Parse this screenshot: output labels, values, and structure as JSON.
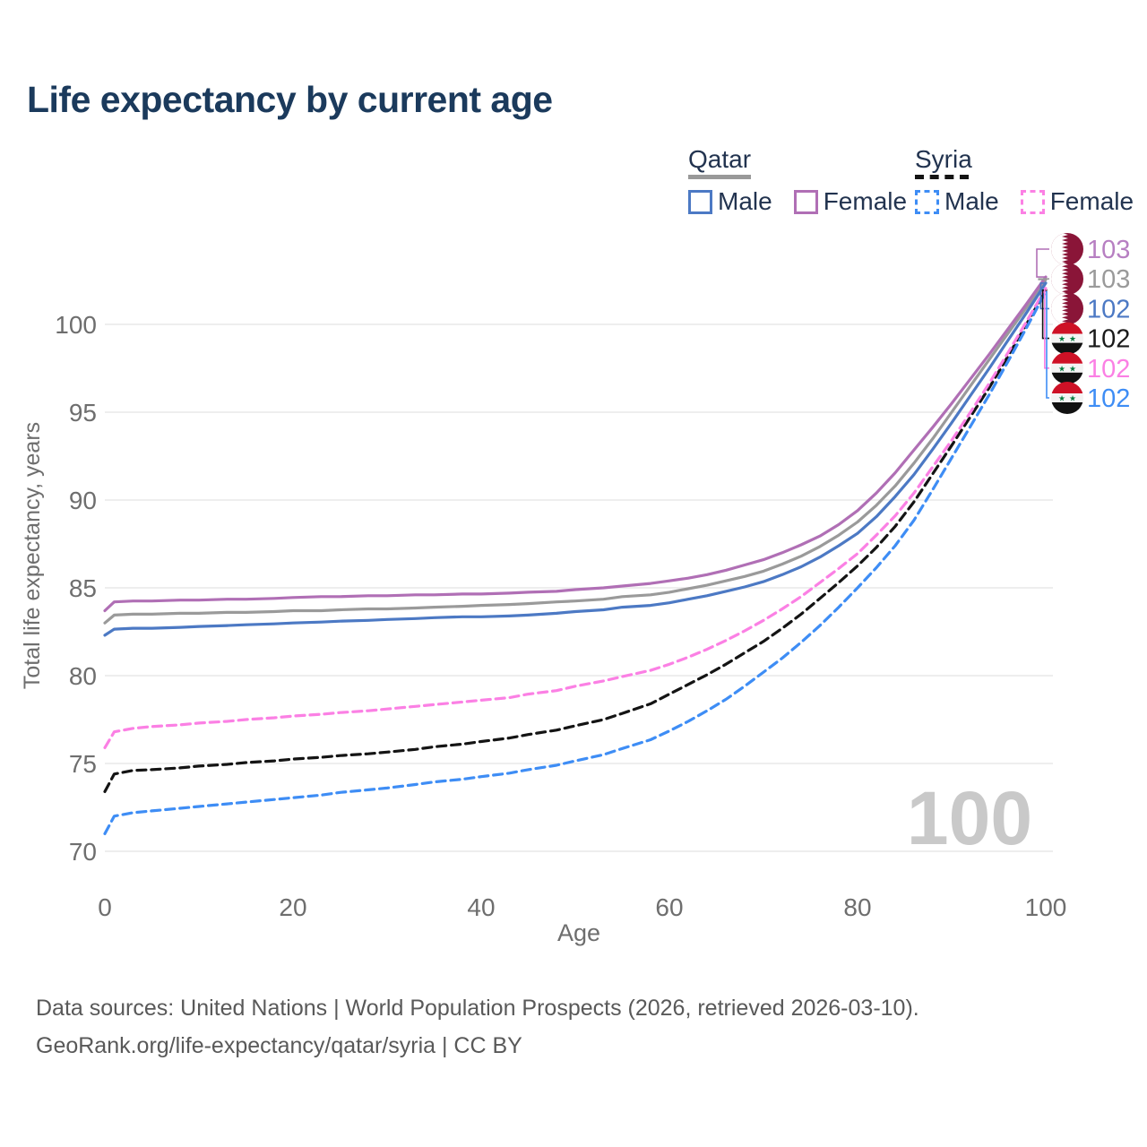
{
  "title": "Life expectancy by current age",
  "legend": {
    "groups": [
      {
        "country": "Qatar",
        "line_style": "solid",
        "average_line_color": "#999999",
        "items": [
          {
            "label": "Male",
            "color": "#4c79c4"
          },
          {
            "label": "Female",
            "color": "#b06fb5"
          }
        ]
      },
      {
        "country": "Syria",
        "line_style": "dashed",
        "average_line_color": "#141414",
        "items": [
          {
            "label": "Male",
            "color": "#3e8df5"
          },
          {
            "label": "Female",
            "color": "#fb80e4"
          }
        ]
      }
    ]
  },
  "watermark": "100",
  "footer": {
    "line1": "Data sources: United Nations | World Population Prospects (2026, retrieved 2026-03-10).",
    "line2": "GeoRank.org/life-expectancy/qatar/syria | CC BY"
  },
  "chart_data": {
    "type": "line",
    "title": "Life expectancy by current age",
    "xlabel": "Age",
    "ylabel": "Total life expectancy, years",
    "xlim": [
      0,
      100
    ],
    "ylim": [
      70,
      103
    ],
    "xticks": [
      0,
      20,
      40,
      60,
      80,
      100
    ],
    "yticks": [
      70,
      75,
      80,
      85,
      90,
      95,
      100
    ],
    "grid": "horizontal",
    "grid_color": "#e8e8e8",
    "tick_color": "#6e6e6e",
    "x": [
      0,
      1,
      3,
      5,
      8,
      10,
      13,
      15,
      18,
      20,
      23,
      25,
      28,
      30,
      33,
      35,
      38,
      40,
      43,
      45,
      48,
      50,
      53,
      55,
      58,
      60,
      62,
      64,
      66,
      68,
      70,
      72,
      74,
      76,
      78,
      80,
      82,
      84,
      86,
      88,
      90,
      92,
      94,
      96,
      98,
      100
    ],
    "series": [
      {
        "name": "Qatar (both sexes)",
        "country": "Qatar",
        "sex": "Both",
        "color": "#9a9a9a",
        "dash": "solid",
        "end_value": 103,
        "values": [
          83.0,
          83.45,
          83.5,
          83.5,
          83.55,
          83.55,
          83.6,
          83.6,
          83.65,
          83.7,
          83.7,
          83.75,
          83.8,
          83.8,
          83.85,
          83.9,
          83.95,
          84.0,
          84.05,
          84.1,
          84.2,
          84.25,
          84.35,
          84.5,
          84.6,
          84.75,
          84.95,
          85.15,
          85.4,
          85.65,
          85.95,
          86.35,
          86.8,
          87.35,
          88.0,
          88.75,
          89.7,
          90.8,
          92.1,
          93.5,
          95.0,
          96.5,
          98.0,
          99.5,
          101.0,
          102.55
        ]
      },
      {
        "name": "Qatar Female",
        "country": "Qatar",
        "sex": "Female",
        "color": "#b06fb5",
        "dash": "solid",
        "end_value": 103,
        "values": [
          83.7,
          84.2,
          84.25,
          84.25,
          84.3,
          84.3,
          84.35,
          84.35,
          84.4,
          84.45,
          84.5,
          84.5,
          84.55,
          84.55,
          84.6,
          84.6,
          84.65,
          84.65,
          84.7,
          84.75,
          84.8,
          84.9,
          85.0,
          85.1,
          85.25,
          85.4,
          85.55,
          85.75,
          86.0,
          86.3,
          86.6,
          87.0,
          87.45,
          87.95,
          88.6,
          89.4,
          90.4,
          91.55,
          92.85,
          94.15,
          95.5,
          96.9,
          98.3,
          99.75,
          101.2,
          102.7
        ]
      },
      {
        "name": "Qatar Male",
        "country": "Qatar",
        "sex": "Male",
        "color": "#4c79c4",
        "dash": "solid",
        "end_value": 102,
        "values": [
          82.3,
          82.65,
          82.7,
          82.7,
          82.75,
          82.8,
          82.85,
          82.9,
          82.95,
          83.0,
          83.05,
          83.1,
          83.15,
          83.2,
          83.25,
          83.3,
          83.35,
          83.35,
          83.4,
          83.45,
          83.55,
          83.65,
          83.75,
          83.9,
          84.0,
          84.15,
          84.35,
          84.55,
          84.8,
          85.05,
          85.35,
          85.75,
          86.2,
          86.75,
          87.4,
          88.1,
          89.05,
          90.2,
          91.45,
          92.9,
          94.4,
          95.95,
          97.5,
          99.1,
          100.7,
          102.35
        ]
      },
      {
        "name": "Syria (both sexes)",
        "country": "Syria",
        "sex": "Both",
        "color": "#141414",
        "dash": "dashed",
        "end_value": 102,
        "values": [
          73.4,
          74.4,
          74.6,
          74.65,
          74.75,
          74.85,
          74.95,
          75.05,
          75.15,
          75.25,
          75.35,
          75.45,
          75.55,
          75.65,
          75.8,
          75.95,
          76.1,
          76.25,
          76.45,
          76.65,
          76.9,
          77.15,
          77.5,
          77.85,
          78.4,
          78.95,
          79.5,
          80.05,
          80.65,
          81.3,
          81.95,
          82.7,
          83.5,
          84.4,
          85.3,
          86.25,
          87.3,
          88.5,
          89.9,
          91.5,
          93.1,
          94.75,
          96.4,
          98.2,
          100.05,
          101.95
        ]
      },
      {
        "name": "Syria Female",
        "country": "Syria",
        "sex": "Female",
        "color": "#fb80e4",
        "dash": "dashed",
        "end_value": 102,
        "values": [
          75.9,
          76.8,
          77.0,
          77.1,
          77.2,
          77.3,
          77.4,
          77.5,
          77.6,
          77.7,
          77.8,
          77.9,
          78.0,
          78.1,
          78.25,
          78.35,
          78.5,
          78.6,
          78.75,
          78.95,
          79.15,
          79.4,
          79.7,
          79.95,
          80.3,
          80.65,
          81.05,
          81.5,
          82.0,
          82.55,
          83.15,
          83.8,
          84.5,
          85.3,
          86.1,
          86.95,
          88.0,
          89.1,
          90.4,
          91.9,
          93.4,
          95.0,
          96.65,
          98.4,
          100.2,
          102.05
        ]
      },
      {
        "name": "Syria Male",
        "country": "Syria",
        "sex": "Male",
        "color": "#3e8df5",
        "dash": "dashed",
        "end_value": 102,
        "values": [
          71.0,
          72.0,
          72.2,
          72.3,
          72.45,
          72.55,
          72.7,
          72.8,
          72.95,
          73.05,
          73.2,
          73.35,
          73.5,
          73.6,
          73.8,
          73.95,
          74.1,
          74.25,
          74.45,
          74.65,
          74.9,
          75.15,
          75.5,
          75.85,
          76.35,
          76.85,
          77.4,
          78.0,
          78.65,
          79.4,
          80.2,
          81.0,
          81.9,
          82.85,
          83.9,
          85.0,
          86.15,
          87.4,
          88.85,
          90.6,
          92.4,
          94.2,
          96.0,
          97.9,
          99.85,
          101.85
        ]
      }
    ],
    "end_labels": [
      {
        "value": "103",
        "flag": "qatar",
        "series": "Qatar Female",
        "color": "#b77fc2"
      },
      {
        "value": "103",
        "flag": "qatar",
        "series": "Qatar (both sexes)",
        "color": "#9a9a9a"
      },
      {
        "value": "102",
        "flag": "qatar",
        "series": "Qatar Male",
        "color": "#4c79c4"
      },
      {
        "value": "102",
        "flag": "syria",
        "series": "Syria (both sexes)",
        "color": "#1a1a1a"
      },
      {
        "value": "102",
        "flag": "syria",
        "series": "Syria Female",
        "color": "#fb80e4"
      },
      {
        "value": "102",
        "flag": "syria",
        "series": "Syria Male",
        "color": "#3e8df5"
      }
    ],
    "legend_position": "top-right"
  }
}
